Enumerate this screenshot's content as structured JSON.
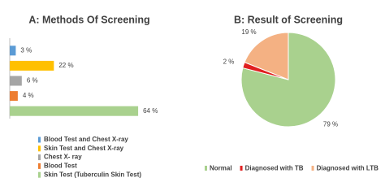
{
  "chart_data": [
    {
      "type": "bar",
      "orientation": "horizontal",
      "title": "A: Methods Of Screening",
      "categories": [
        "Blood Test and Chest X-ray",
        "Skin Test and Chest X-ray",
        "Chest X- ray",
        "Blood Test",
        "Skin Test (Tuberculin Skin Test)"
      ],
      "values": [
        3,
        22,
        6,
        4,
        64
      ],
      "value_labels": [
        "3 %",
        "22 %",
        "6 %",
        "4 %",
        "64 %"
      ],
      "colors": [
        "#5b9bd5",
        "#ffc000",
        "#a5a5a5",
        "#ed7d31",
        "#a9d18e"
      ]
    },
    {
      "type": "pie",
      "title": "B: Result of Screening",
      "categories": [
        "Normal",
        "Diagnosed with TB",
        "Diagnosed with LTB"
      ],
      "values": [
        79,
        2,
        19
      ],
      "value_labels": [
        "79 %",
        "2 %",
        "19 %"
      ],
      "colors": [
        "#a9d18e",
        "#e02020",
        "#f4b183"
      ]
    }
  ]
}
